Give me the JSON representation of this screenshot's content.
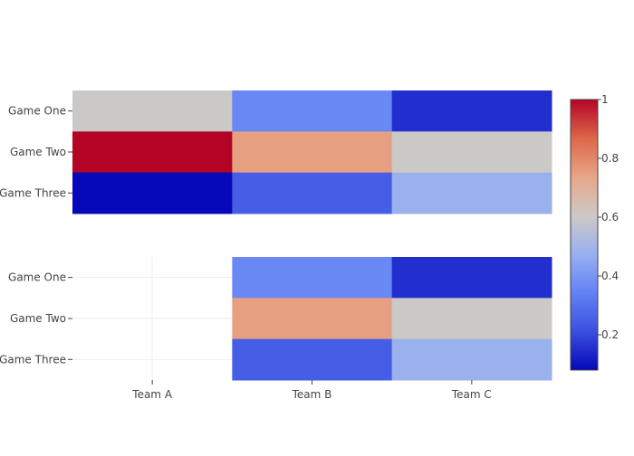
{
  "chart_data": [
    {
      "type": "heatmap",
      "panel": "top",
      "x_categories": [
        "Team A",
        "Team B",
        "Team C"
      ],
      "y_categories": [
        "Game One",
        "Game Two",
        "Game Three"
      ],
      "z": [
        [
          0.6,
          0.36,
          0.15
        ],
        [
          1.0,
          0.75,
          0.6
        ],
        [
          0.08,
          0.25,
          0.48
        ]
      ]
    },
    {
      "type": "heatmap",
      "panel": "bottom",
      "x_categories": [
        "Team A",
        "Team B",
        "Team C"
      ],
      "y_categories": [
        "Game One",
        "Game Two",
        "Game Three"
      ],
      "z": [
        [
          null,
          0.36,
          0.15
        ],
        [
          null,
          0.75,
          0.6
        ],
        [
          null,
          0.25,
          0.48
        ]
      ],
      "grid": true
    }
  ],
  "colorbar": {
    "ticks": [
      "1",
      "0.8",
      "0.6",
      "0.4",
      "0.2"
    ],
    "tick_values": [
      1.0,
      0.8,
      0.6,
      0.4,
      0.2
    ],
    "zmin": 0.08,
    "zmax": 1.0,
    "colorscale": [
      "#0508b8",
      "#3b4fe0",
      "#6282f5",
      "#99b0f0",
      "#cdc9c6",
      "#e7a687",
      "#dd6649",
      "#b40426"
    ]
  },
  "x_axis_labels": [
    "Team A",
    "Team B",
    "Team C"
  ]
}
